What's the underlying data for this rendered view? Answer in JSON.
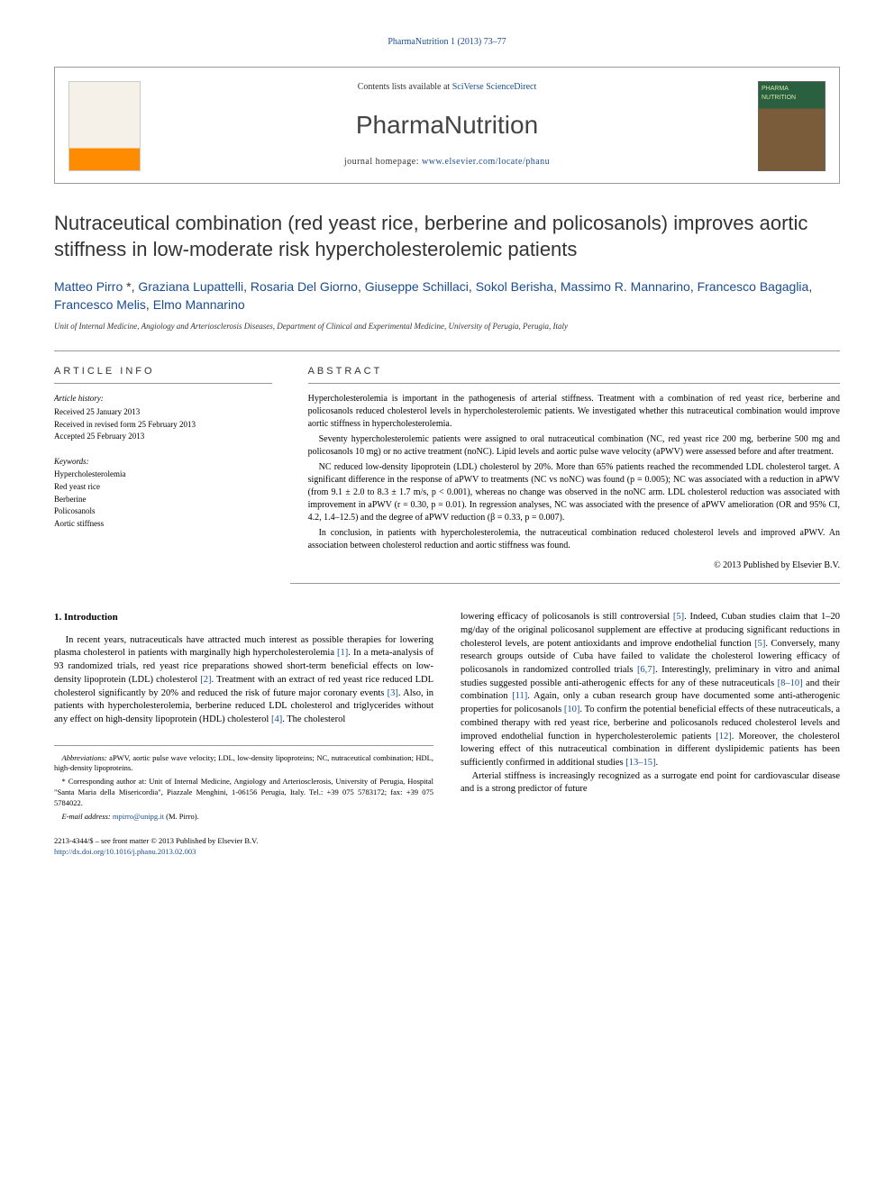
{
  "header": {
    "citation": "PharmaNutrition 1 (2013) 73–77",
    "contents_prefix": "Contents lists available at ",
    "contents_link": "SciVerse ScienceDirect",
    "journal_name": "PharmaNutrition",
    "homepage_prefix": "journal homepage: ",
    "homepage_url": "www.elsevier.com/locate/phanu",
    "publisher_name": "ELSEVIER",
    "cover_label": "PHARMA NUTRITION"
  },
  "article": {
    "title": "Nutraceutical combination (red yeast rice, berberine and policosanols) improves aortic stiffness in low-moderate risk hypercholesterolemic patients",
    "authors_html": "Matteo Pirro *, Graziana Lupattelli, Rosaria Del Giorno, Giuseppe Schillaci, Sokol Berisha, Massimo R. Mannarino, Francesco Bagaglia, Francesco Melis, Elmo Mannarino",
    "affiliation": "Unit of Internal Medicine, Angiology and Arteriosclerosis Diseases, Department of Clinical and Experimental Medicine, University of Perugia, Perugia, Italy"
  },
  "info": {
    "heading": "ARTICLE INFO",
    "history_label": "Article history:",
    "received": "Received 25 January 2013",
    "revised": "Received in revised form 25 February 2013",
    "accepted": "Accepted 25 February 2013",
    "keywords_label": "Keywords:",
    "keywords": [
      "Hypercholesterolemia",
      "Red yeast rice",
      "Berberine",
      "Policosanols",
      "Aortic stiffness"
    ]
  },
  "abstract": {
    "heading": "ABSTRACT",
    "p1": "Hypercholesterolemia is important in the pathogenesis of arterial stiffness. Treatment with a combination of red yeast rice, berberine and policosanols reduced cholesterol levels in hypercholesterolemic patients. We investigated whether this nutraceutical combination would improve aortic stiffness in hypercholesterolemia.",
    "p2": "Seventy hypercholesterolemic patients were assigned to oral nutraceutical combination (NC, red yeast rice 200 mg, berberine 500 mg and policosanols 10 mg) or no active treatment (noNC). Lipid levels and aortic pulse wave velocity (aPWV) were assessed before and after treatment.",
    "p3": "NC reduced low-density lipoprotein (LDL) cholesterol by 20%. More than 65% patients reached the recommended LDL cholesterol target. A significant difference in the response of aPWV to treatments (NC vs noNC) was found (p = 0.005); NC was associated with a reduction in aPWV (from 9.1 ± 2.0 to 8.3 ± 1.7 m/s, p < 0.001), whereas no change was observed in the noNC arm. LDL cholesterol reduction was associated with improvement in aPWV (r = 0.30, p = 0.01). In regression analyses, NC was associated with the presence of aPWV amelioration (OR and 95% CI, 4.2, 1.4–12.5) and the degree of aPWV reduction (β = 0.33, p = 0.007).",
    "p4": "In conclusion, in patients with hypercholesterolemia, the nutraceutical combination reduced cholesterol levels and improved aPWV. An association between cholesterol reduction and aortic stiffness was found.",
    "copyright": "© 2013 Published by Elsevier B.V."
  },
  "body": {
    "section_number": "1.",
    "section_title": "Introduction",
    "col1_p1_a": "In recent years, nutraceuticals have attracted much interest as possible therapies for lowering plasma cholesterol in patients with marginally high hypercholesterolemia ",
    "ref1": "[1]",
    "col1_p1_b": ". In a meta-analysis of 93 randomized trials, red yeast rice preparations showed short-term beneficial effects on low-density lipoprotein (LDL) cholesterol ",
    "ref2": "[2]",
    "col1_p1_c": ". Treatment with an extract of red yeast rice reduced LDL cholesterol significantly by 20% and reduced the risk of future major coronary events ",
    "ref3": "[3]",
    "col1_p1_d": ". Also, in patients with hypercholesterolemia, berberine reduced LDL cholesterol and triglycerides without any effect on high-density lipoprotein (HDL) cholesterol ",
    "ref4": "[4]",
    "col1_p1_e": ". The cholesterol",
    "col2_p1_a": "lowering efficacy of policosanols is still controversial ",
    "ref5a": "[5]",
    "col2_p1_b": ". Indeed, Cuban studies claim that 1–20 mg/day of the original policosanol supplement are effective at producing significant reductions in cholesterol levels, are potent antioxidants and improve endothelial function ",
    "ref5b": "[5]",
    "col2_p1_c": ". Conversely, many research groups outside of Cuba have failed to validate the cholesterol lowering efficacy of policosanols in randomized controlled trials ",
    "ref67": "[6,7]",
    "col2_p1_d": ". Interestingly, preliminary in vitro and animal studies suggested possible anti-atherogenic effects for any of these nutraceuticals ",
    "ref810": "[8–10]",
    "col2_p1_e": " and their combination ",
    "ref11": "[11]",
    "col2_p1_f": ". Again, only a cuban research group have documented some anti-atherogenic properties for policosanols ",
    "ref10": "[10]",
    "col2_p1_g": ". To confirm the potential beneficial effects of these nutraceuticals, a combined therapy with red yeast rice, berberine and policosanols reduced cholesterol levels and improved endothelial function in hypercholesterolemic patients ",
    "ref12": "[12]",
    "col2_p1_h": ". Moreover, the cholesterol lowering effect of this nutraceutical combination in different dyslipidemic patients has been sufficiently confirmed in additional studies ",
    "ref1315": "[13–15]",
    "col2_p1_i": ".",
    "col2_p2": "Arterial stiffness is increasingly recognized as a surrogate end point for cardiovascular disease and is a strong predictor of future"
  },
  "footnotes": {
    "abbrev_label": "Abbreviations: ",
    "abbrev_text": "aPWV, aortic pulse wave velocity; LDL, low-density lipoproteins; NC, nutraceutical combination; HDL, high-density lipoproteins.",
    "corr_label": "* Corresponding author at: ",
    "corr_text": "Unit of Internal Medicine, Angiology and Arteriosclerosis, University of Perugia, Hospital \"Santa Maria della Misericordia\", Piazzale Menghini, 1-06156 Perugia, Italy. Tel.: +39 075 5783172; fax: +39 075 5784022.",
    "email_label": "E-mail address: ",
    "email": "mpirro@unipg.it",
    "email_suffix": " (M. Pirro)."
  },
  "footer": {
    "issn_line": "2213-4344/$ – see front matter © 2013 Published by Elsevier B.V.",
    "doi": "http://dx.doi.org/10.1016/j.phanu.2013.02.003"
  }
}
